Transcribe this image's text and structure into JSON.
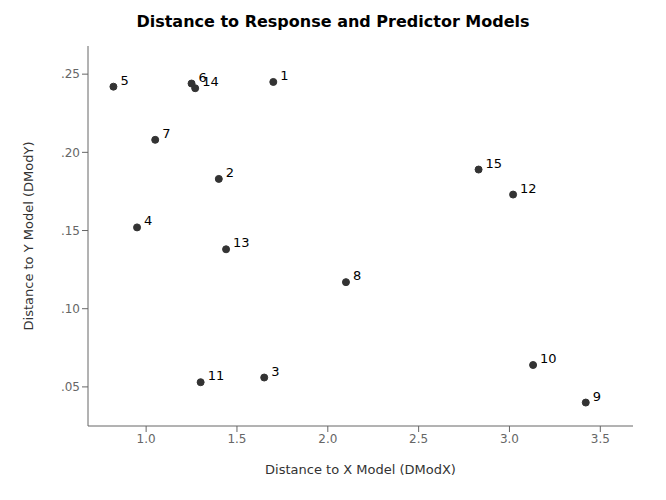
{
  "chart_data": {
    "type": "scatter",
    "title": "Distance to Response and Predictor Models",
    "xlabel": "Distance to X Model (DModX)",
    "ylabel": "Distance to Y Model (DModY)",
    "x": [
      1.7,
      1.4,
      1.65,
      0.95,
      0.82,
      1.25,
      1.05,
      2.1,
      3.42,
      3.13,
      1.3,
      3.02,
      1.44,
      1.27,
      2.83
    ],
    "values": [
      0.245,
      0.183,
      0.056,
      0.152,
      0.242,
      0.244,
      0.208,
      0.117,
      0.04,
      0.064,
      0.053,
      0.173,
      0.138,
      0.241,
      0.189
    ],
    "labels": [
      "1",
      "2",
      "3",
      "4",
      "5",
      "6",
      "7",
      "8",
      "9",
      "10",
      "11",
      "12",
      "13",
      "14",
      "15"
    ],
    "xlim": [
      0.68,
      3.68
    ],
    "ylim": [
      0.025,
      0.268
    ],
    "xticks": [
      {
        "value": 1.0,
        "label": "1.0"
      },
      {
        "value": 1.5,
        "label": "1.5"
      },
      {
        "value": 2.0,
        "label": "2.0"
      },
      {
        "value": 2.5,
        "label": "2.5"
      },
      {
        "value": 3.0,
        "label": "3.0"
      },
      {
        "value": 3.5,
        "label": "3.5"
      }
    ],
    "yticks": [
      {
        "value": 0.05,
        "label": ".05"
      },
      {
        "value": 0.1,
        "label": ".10"
      },
      {
        "value": 0.15,
        "label": ".15"
      },
      {
        "value": 0.2,
        "label": ".20"
      },
      {
        "value": 0.25,
        "label": ".25"
      }
    ],
    "color": "#333333",
    "marker": "circle",
    "grid": false
  }
}
